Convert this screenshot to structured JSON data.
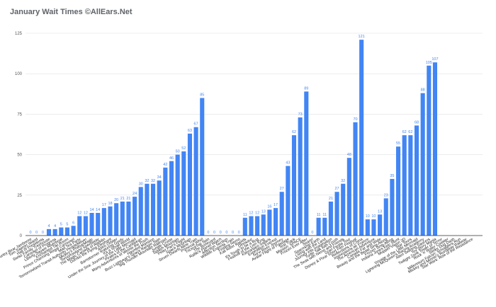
{
  "chart_data": {
    "type": "bar",
    "title": "January Wait Times ©AllEars.Net",
    "xlabel": "",
    "ylabel": "",
    "ylim": [
      0,
      125
    ],
    "yticks": [
      0,
      25,
      50,
      75,
      100,
      125
    ],
    "grid": true,
    "legend": "none",
    "bar_color": "#4285f4",
    "categories": [
      "Country Bear Jamboree",
      "Tom Sawyer Island",
      "Hall of Presidents",
      "Swiss Family Treehouse",
      "Carousel of Progress",
      "Liberty Square Riverboat",
      "Enchanted Tiki Room",
      "Prince Charming Regal Carrousel",
      "Mad Tea Party",
      "Tomorrowland Transit Authority PeopleMover",
      "Mickey's PhilharMagic",
      "Tomorrowland Speedway",
      "The Magic Carpets of Aladdin",
      "Dumbo the Flying Elephant",
      "Astro Orbiter",
      "Barnstormer featuring Goofy",
      "It's a Small World",
      "Under the Sea: Journey of the Little Mermaid",
      "Pirates of the Caribbean",
      "Many Adventures of Winnie the Pooh",
      "Haunted Mansion",
      "Buzz Lightyear's Space Ranger Spin",
      "Big Thunder Mountain Railroad",
      "Jungle Cruise",
      "Splash Mountain",
      "Peter Pan's Flight",
      "Space Mountain",
      "Seven Dwarfs Mine Train",
      "Primeval Whirl",
      "TriceraTop Spin",
      "The Boneyard",
      "Rafiki's Planet Watch",
      "Affection Section",
      "Wildlife Express Train",
      "Finding Nemo",
      "Kali River Rapids",
      "Dinosaur",
      "It's Tough to be a Bug",
      "Festival of the Lion King",
      "Kilimanjaro Safaris",
      "Expedition Everest",
      "Na'vi River Journey",
      "Avatar Flight of Passage",
      "Test Track",
      "Mission: SPACE",
      "Frozen Ever After",
      "Soarin'",
      "Spaceship Earth",
      "Living with the Land",
      "Journey into Imagination",
      "Turtle Talk with Crush",
      "The Seas with Nemo and Friends",
      "Gran Fiesta Tour",
      "Disney & Pixar Short Film Festival",
      "Reflections of China",
      "Impressions de France",
      "The American Adventure",
      "Canada Far and Wide",
      "Beauty and the Beast Sing-Along",
      "Frozen Sing-Along",
      "Indiana Jones Epic Stunt",
      "Muppet*Vision 3D",
      "Star Tours",
      "Voyage of the Little Mermaid",
      "Lightning McQueen's Racing Academy",
      "Alien Swirling Saucers",
      "Toy Story Mania",
      "Twilight Zone Tower of Terror",
      "Rock 'n' Roller Coaster",
      "Slinky Dog Dash",
      "Millennium Falcon: Smugglers Run",
      "Mickey and Minnie's Runaway Railway",
      "Star Wars: Rise of the Resistance"
    ],
    "values": [
      0,
      0,
      0,
      4,
      4,
      5,
      5,
      6,
      12,
      12,
      14,
      14,
      17,
      18,
      20,
      21,
      21,
      24,
      30,
      32,
      32,
      34,
      42,
      46,
      50,
      52,
      63,
      67,
      85,
      0,
      0,
      0,
      0,
      0,
      0,
      11,
      12,
      12,
      13,
      16,
      17,
      27,
      43,
      62,
      73,
      89,
      0,
      11,
      11,
      21,
      27,
      32,
      48,
      70,
      121,
      10,
      10,
      13,
      23,
      35,
      55,
      62,
      62,
      68,
      88,
      105,
      107,
      0,
      0,
      0,
      0,
      0,
      0
    ],
    "data_labels": [
      "0",
      "0",
      "0",
      "4",
      "4",
      "5",
      "5",
      "6",
      "12",
      "12",
      "14",
      "14",
      "17",
      "18",
      "20",
      "21",
      "21",
      "24",
      "30",
      "32",
      "32",
      "34",
      "42",
      "46",
      "50",
      "52",
      "63",
      "67",
      "85",
      "0",
      "0",
      "0",
      "0",
      "0",
      "0",
      "11",
      "12",
      "12",
      "13",
      "16",
      "17",
      "27",
      "43",
      "62",
      "73",
      "89",
      "0",
      "11",
      "11",
      "21",
      "27",
      "32",
      "48",
      "70",
      "121",
      "10",
      "10",
      "13",
      "23",
      "35",
      "55",
      "62",
      "62",
      "68",
      "88",
      "105",
      "107",
      "",
      "",
      "",
      "",
      "",
      ""
    ]
  }
}
